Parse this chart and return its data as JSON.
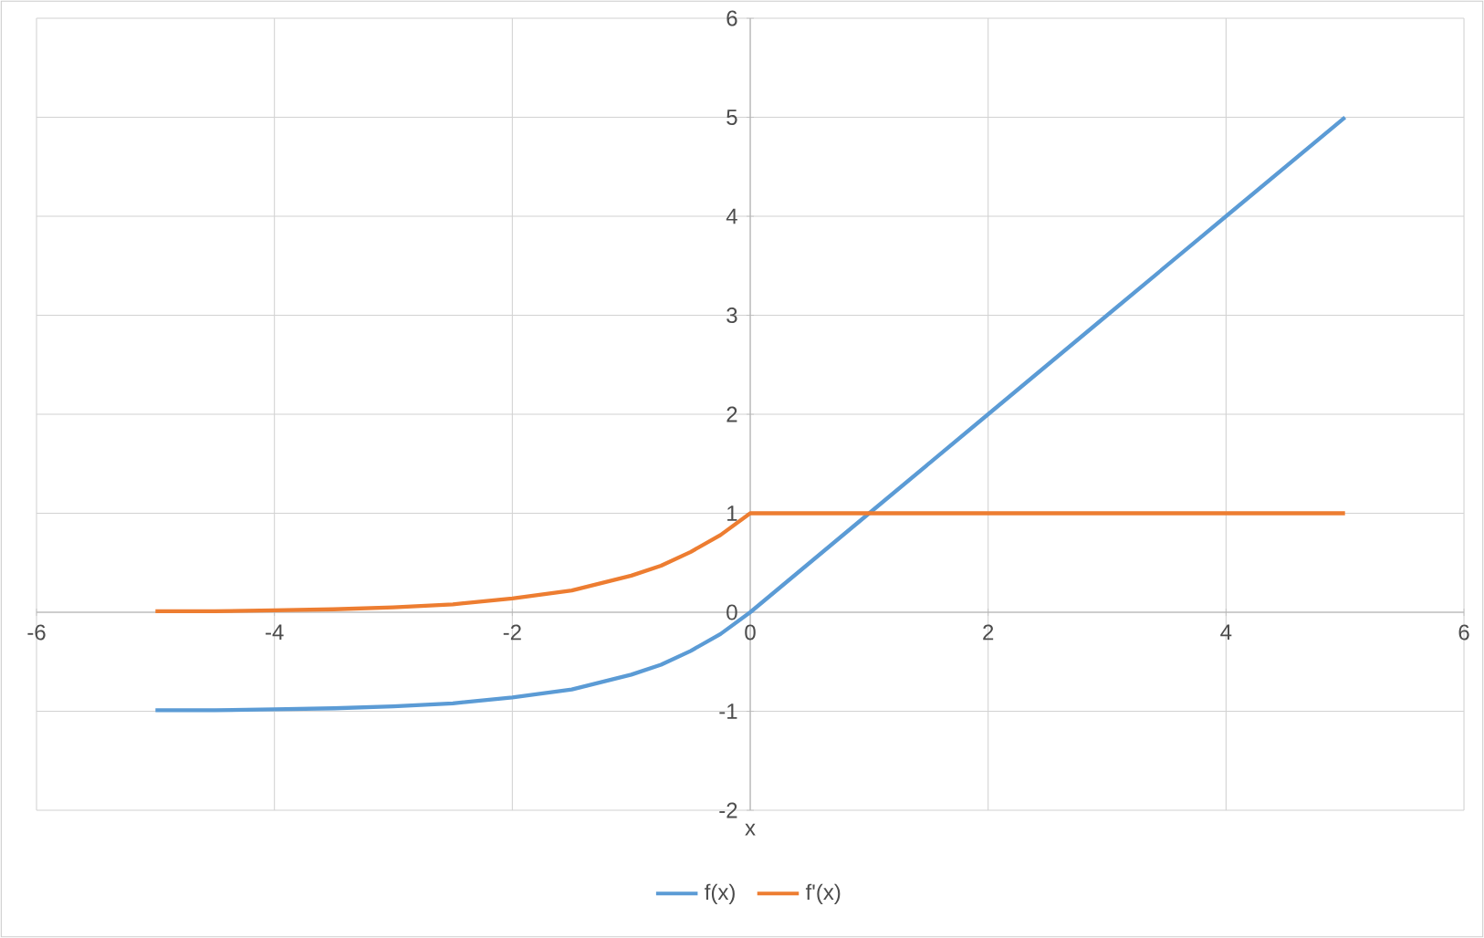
{
  "chart_data": {
    "type": "line",
    "xlabel": "x",
    "x": [
      -5,
      -4.5,
      -4,
      -3.5,
      -3,
      -2.5,
      -2,
      -1.5,
      -1,
      -0.75,
      -0.5,
      -0.25,
      0,
      1,
      2,
      3,
      4,
      5
    ],
    "series": [
      {
        "name": "f(x)",
        "color": "#5b9bd5",
        "values": [
          -0.99,
          -0.99,
          -0.98,
          -0.97,
          -0.95,
          -0.92,
          -0.86,
          -0.78,
          -0.63,
          -0.53,
          -0.39,
          -0.22,
          0,
          1,
          2,
          3,
          4,
          5
        ]
      },
      {
        "name": "f'(x)",
        "color": "#ed7d31",
        "values": [
          0.01,
          0.01,
          0.02,
          0.03,
          0.05,
          0.08,
          0.14,
          0.22,
          0.37,
          0.47,
          0.61,
          0.78,
          1,
          1,
          1,
          1,
          1,
          1
        ]
      }
    ],
    "xlim": [
      -6,
      6
    ],
    "ylim": [
      -2,
      6
    ],
    "xticks": [
      -6,
      -4,
      -2,
      0,
      2,
      4,
      6
    ],
    "yticks": [
      -2,
      -1,
      0,
      1,
      2,
      3,
      4,
      5,
      6
    ],
    "grid": true,
    "legend": "bottom"
  }
}
